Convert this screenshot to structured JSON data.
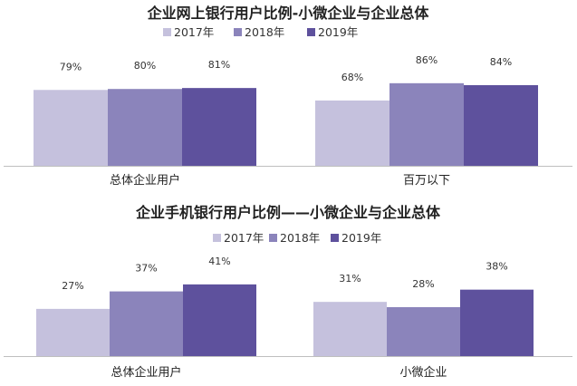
{
  "colors": {
    "2017": "#c5c1dd",
    "2018": "#8b84bb",
    "2019": "#5e519d",
    "axis": "#bfbfbf"
  },
  "chart_data": [
    {
      "type": "bar",
      "title": "企业网上银行用户比例-小微企业与企业总体",
      "categories": [
        "总体企业用户",
        "百万以下"
      ],
      "series": [
        {
          "name": "2017年",
          "values": [
            79,
            68
          ],
          "labels": [
            "79%",
            "68%"
          ]
        },
        {
          "name": "2018年",
          "values": [
            80,
            86
          ],
          "labels": [
            "80%",
            "86%"
          ]
        },
        {
          "name": "2019年",
          "values": [
            81,
            84
          ],
          "labels": [
            "81%",
            "84%"
          ]
        }
      ],
      "ylim": [
        0,
        100
      ],
      "legend": "top-center",
      "grid": false
    },
    {
      "type": "bar",
      "title": "企业手机银行用户比例——小微企业与企业总体",
      "categories": [
        "总体企业用户",
        "小微企业"
      ],
      "series": [
        {
          "name": "2017年",
          "values": [
            27,
            31
          ],
          "labels": [
            "27%",
            "31%"
          ]
        },
        {
          "name": "2018年",
          "values": [
            37,
            28
          ],
          "labels": [
            "37%",
            "28%"
          ]
        },
        {
          "name": "2019年",
          "values": [
            41,
            38
          ],
          "labels": [
            "41%",
            "38%"
          ]
        }
      ],
      "ylim": [
        0,
        50
      ],
      "legend": "top-center",
      "grid": false
    }
  ]
}
